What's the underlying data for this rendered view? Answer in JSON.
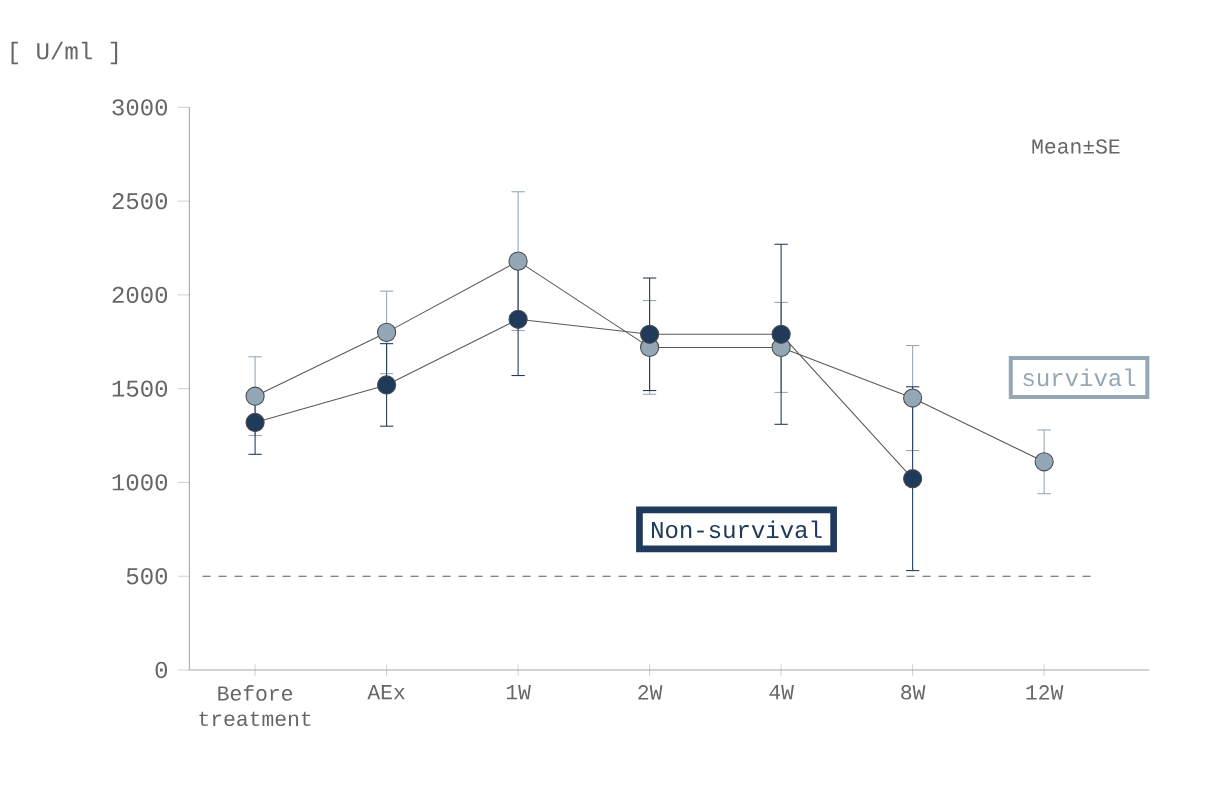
{
  "chart_data": {
    "type": "line",
    "ylabel": "[ U/ml ]",
    "categories": [
      "Before treatment",
      "AEx",
      "1W",
      "2W",
      "4W",
      "8W",
      "12W"
    ],
    "series": [
      {
        "name": "survival",
        "color": "#93a7b6",
        "values": [
          1460,
          1800,
          2180,
          1720,
          1720,
          1450,
          1110
        ],
        "errors": [
          210,
          220,
          370,
          250,
          240,
          280,
          170
        ]
      },
      {
        "name": "Non-survival",
        "color": "#1f3a5a",
        "values": [
          1320,
          1520,
          1870,
          1790,
          1790,
          1020,
          null
        ],
        "errors": [
          170,
          220,
          300,
          300,
          480,
          490,
          null
        ]
      }
    ],
    "ylim": [
      0,
      3000
    ],
    "yticks": [
      0,
      500,
      1000,
      1500,
      2000,
      2500,
      3000
    ],
    "ref_lines": [
      {
        "axis": "y",
        "value": 500,
        "line_style": "dashed"
      }
    ],
    "annotations": [
      "Mean±SE"
    ],
    "marker": "circle",
    "line_style": "solid",
    "grid": false
  }
}
